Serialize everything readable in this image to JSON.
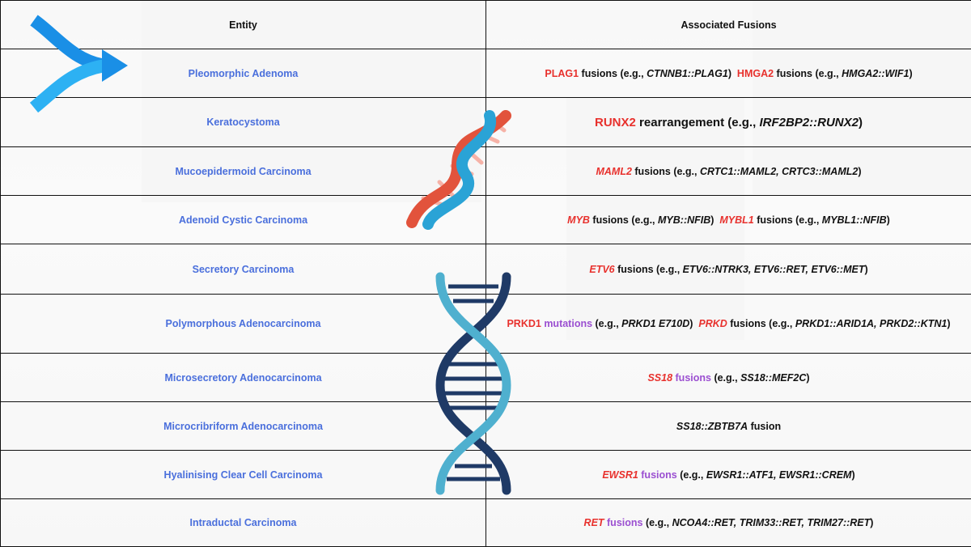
{
  "table": {
    "headers": {
      "entity": "Entity",
      "fusions": "Associated Fusions"
    },
    "rows": [
      {
        "entity": "Pleomorphic Adenoma",
        "parts": [
          {
            "t": "PLAG1",
            "c": "red"
          },
          {
            "t": " fusions (e.g., "
          },
          {
            "t": "CTNNB1::PLAG1",
            "i": true
          },
          {
            "t": ")  "
          },
          {
            "t": "HMGA2",
            "c": "red"
          },
          {
            "t": " fusions (e.g., "
          },
          {
            "t": "HMGA2::WIF1",
            "i": true
          },
          {
            "t": ")"
          }
        ]
      },
      {
        "entity": "Keratocystoma",
        "big": true,
        "parts": [
          {
            "t": "RUNX2",
            "c": "red"
          },
          {
            "t": " rearrangement (e.g., "
          },
          {
            "t": "IRF2BP2::RUNX2",
            "i": true
          },
          {
            "t": ")"
          }
        ]
      },
      {
        "entity": "Mucoepidermoid Carcinoma",
        "parts": [
          {
            "t": "MAML2",
            "c": "red",
            "i": true
          },
          {
            "t": " fusions (e.g., "
          },
          {
            "t": "CRTC1::MAML2, CRTC3::MAML2",
            "i": true
          },
          {
            "t": ")"
          }
        ]
      },
      {
        "entity": "Adenoid Cystic Carcinoma",
        "parts": [
          {
            "t": "MYB",
            "c": "red",
            "i": true
          },
          {
            "t": " fusions (e.g., "
          },
          {
            "t": "MYB::NFIB",
            "i": true
          },
          {
            "t": ")  "
          },
          {
            "t": "MYBL1",
            "c": "red",
            "i": true
          },
          {
            "t": " fusions (e.g., "
          },
          {
            "t": "MYBL1::NFIB",
            "i": true
          },
          {
            "t": ")"
          }
        ]
      },
      {
        "entity": "Secretory Carcinoma",
        "parts": [
          {
            "t": "ETV6",
            "c": "red",
            "i": true
          },
          {
            "t": " fusions (e.g., "
          },
          {
            "t": "ETV6::NTRK3, ETV6::RET, ETV6::MET",
            "i": true
          },
          {
            "t": ")"
          }
        ]
      },
      {
        "entity": "Polymorphous Adenocarcinoma",
        "parts": [
          {
            "t": "PRKD1",
            "c": "red"
          },
          {
            "t": " mutations",
            "c": "purple"
          },
          {
            "t": " (e.g., "
          },
          {
            "t": "PRKD1 E710D",
            "i": true
          },
          {
            "t": ")  "
          },
          {
            "t": "PRKD",
            "c": "red",
            "i": true
          },
          {
            "t": " fusions (e.g., "
          },
          {
            "t": "PRKD1::ARID1A, PRKD2::KTN1",
            "i": true
          },
          {
            "t": ")"
          }
        ]
      },
      {
        "entity": "Microsecretory Adenocarcinoma",
        "parts": [
          {
            "t": "SS18",
            "c": "red",
            "i": true
          },
          {
            "t": " fusions",
            "c": "purple"
          },
          {
            "t": " (e.g., "
          },
          {
            "t": "SS18::MEF2C",
            "i": true
          },
          {
            "t": ")"
          }
        ]
      },
      {
        "entity": "Microcribriform Adenocarcinoma",
        "parts": [
          {
            "t": "SS18::ZBTB7A",
            "i": true
          },
          {
            "t": " fusion"
          }
        ]
      },
      {
        "entity": "Hyalinising Clear Cell Carcinoma",
        "parts": [
          {
            "t": "EWSR1",
            "c": "red",
            "i": true
          },
          {
            "t": " fusions",
            "c": "purple"
          },
          {
            "t": " (e.g., "
          },
          {
            "t": "EWSR1::ATF1, EWSR1::CREM",
            "i": true
          },
          {
            "t": ")"
          }
        ]
      },
      {
        "entity": "Intraductal Carcinoma",
        "parts": [
          {
            "t": "RET",
            "c": "red",
            "i": true
          },
          {
            "t": " fusions",
            "c": "purple"
          },
          {
            "t": " (e.g., "
          },
          {
            "t": "NCOA4::RET, TRIM33::RET, TRIM27::RET",
            "i": true
          },
          {
            "t": ")"
          }
        ]
      }
    ]
  },
  "icons": [
    "merge-arrow-icon",
    "dna-helix-emoji-icon",
    "dna-double-helix-icon"
  ],
  "colors": {
    "entity": "#4a6fdc",
    "gene": "#e8312d",
    "purple": "#9b4fd1",
    "border": "#111111"
  }
}
